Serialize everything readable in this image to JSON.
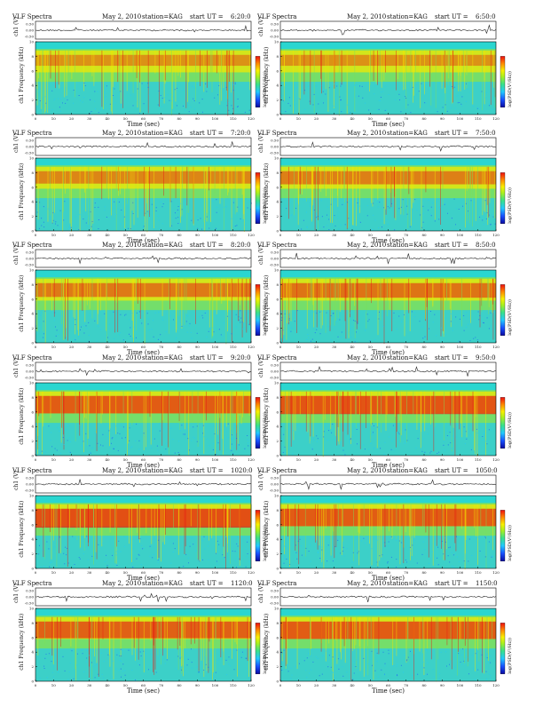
{
  "header": {
    "title": "VLF Spectra",
    "date": "May 2, 2010",
    "station": "station=KAG",
    "start_prefix": "start UT ="
  },
  "axes": {
    "ch1_label": "ch1 (V)",
    "spec_label": "ch1 Frequency (kHz)",
    "xlabel": "Time (sec)",
    "colorbar_label": "log(PSD(V²/Hz))"
  },
  "panels": [
    {
      "start_ut": "6:20:0"
    },
    {
      "start_ut": "6:50:0"
    },
    {
      "start_ut": "7:20:0"
    },
    {
      "start_ut": "7:50:0"
    },
    {
      "start_ut": "8:20:0"
    },
    {
      "start_ut": "8:50:0"
    },
    {
      "start_ut": "9:20:0"
    },
    {
      "start_ut": "9:50:0"
    },
    {
      "start_ut": "1020:0"
    },
    {
      "start_ut": "1050:0"
    },
    {
      "start_ut": "1120:0"
    },
    {
      "start_ut": "1150:0"
    }
  ],
  "chart_data": {
    "type": "heatmap",
    "x": {
      "label": "Time (sec)",
      "range": [
        0,
        120
      ],
      "ticks": [
        0,
        10,
        20,
        30,
        40,
        50,
        60,
        70,
        80,
        90,
        100,
        110,
        120
      ]
    },
    "y_freq": {
      "label": "Frequency (kHz)",
      "range": [
        0,
        10
      ],
      "ticks": [
        0,
        2,
        4,
        6,
        8,
        10
      ]
    },
    "y_ch1": {
      "label": "ch1 (V)",
      "ticks": [
        "0.50",
        "0.00",
        "-0.50"
      ]
    },
    "colorbar": {
      "label": "log(PSD(V²/Hz))",
      "colors": [
        "#0a0aa0",
        "#1850ff",
        "#22c8ff",
        "#38e08c",
        "#a8f020",
        "#f8f000",
        "#ff8800",
        "#ee1010"
      ]
    },
    "palette": {
      "low": "#3cd0c8",
      "mid": "#7ee05a",
      "high": "#f2e800",
      "peak": "#e81a12",
      "top_band": "#2ad6d0"
    }
  }
}
